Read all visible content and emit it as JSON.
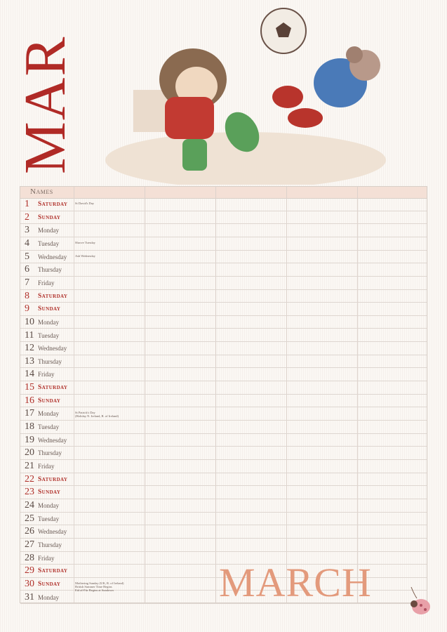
{
  "side_title": "MAR",
  "month_title": "MARCH",
  "header": {
    "names_label": "Names"
  },
  "colors": {
    "weekend": "#b0302a",
    "weekday": "#6a5a54",
    "side_title": "#b02a26",
    "month_title": "#e39a7c",
    "header_bg": "#f4e0d6"
  },
  "days": [
    {
      "num": "1",
      "day": "Saturday",
      "weekend": true,
      "event": "St David's Day"
    },
    {
      "num": "2",
      "day": "Sunday",
      "weekend": true,
      "event": ""
    },
    {
      "num": "3",
      "day": "Monday",
      "weekend": false,
      "event": ""
    },
    {
      "num": "4",
      "day": "Tuesday",
      "weekend": false,
      "event": "Shrove Tuesday"
    },
    {
      "num": "5",
      "day": "Wednesday",
      "weekend": false,
      "event": "Ash Wednesday"
    },
    {
      "num": "6",
      "day": "Thursday",
      "weekend": false,
      "event": ""
    },
    {
      "num": "7",
      "day": "Friday",
      "weekend": false,
      "event": ""
    },
    {
      "num": "8",
      "day": "Saturday",
      "weekend": true,
      "event": ""
    },
    {
      "num": "9",
      "day": "Sunday",
      "weekend": true,
      "event": ""
    },
    {
      "num": "10",
      "day": "Monday",
      "weekend": false,
      "event": ""
    },
    {
      "num": "11",
      "day": "Tuesday",
      "weekend": false,
      "event": ""
    },
    {
      "num": "12",
      "day": "Wednesday",
      "weekend": false,
      "event": ""
    },
    {
      "num": "13",
      "day": "Thursday",
      "weekend": false,
      "event": ""
    },
    {
      "num": "14",
      "day": "Friday",
      "weekend": false,
      "event": ""
    },
    {
      "num": "15",
      "day": "Saturday",
      "weekend": true,
      "event": ""
    },
    {
      "num": "16",
      "day": "Sunday",
      "weekend": true,
      "event": ""
    },
    {
      "num": "17",
      "day": "Monday",
      "weekend": false,
      "event": "St Patrick's Day\n(Holiday N. Ireland, R. of Ireland)"
    },
    {
      "num": "18",
      "day": "Tuesday",
      "weekend": false,
      "event": ""
    },
    {
      "num": "19",
      "day": "Wednesday",
      "weekend": false,
      "event": ""
    },
    {
      "num": "20",
      "day": "Thursday",
      "weekend": false,
      "event": ""
    },
    {
      "num": "21",
      "day": "Friday",
      "weekend": false,
      "event": ""
    },
    {
      "num": "22",
      "day": "Saturday",
      "weekend": true,
      "event": ""
    },
    {
      "num": "23",
      "day": "Sunday",
      "weekend": true,
      "event": ""
    },
    {
      "num": "24",
      "day": "Monday",
      "weekend": false,
      "event": ""
    },
    {
      "num": "25",
      "day": "Tuesday",
      "weekend": false,
      "event": ""
    },
    {
      "num": "26",
      "day": "Wednesday",
      "weekend": false,
      "event": ""
    },
    {
      "num": "27",
      "day": "Thursday",
      "weekend": false,
      "event": ""
    },
    {
      "num": "28",
      "day": "Friday",
      "weekend": false,
      "event": ""
    },
    {
      "num": "29",
      "day": "Saturday",
      "weekend": true,
      "event": ""
    },
    {
      "num": "30",
      "day": "Sunday",
      "weekend": true,
      "event": "Mothering Sunday (UK, R. of Ireland)\nBritish Summer Time Begins\nEid al-Fitr Begins at Sundown"
    },
    {
      "num": "31",
      "day": "Monday",
      "weekend": false,
      "event": ""
    }
  ]
}
